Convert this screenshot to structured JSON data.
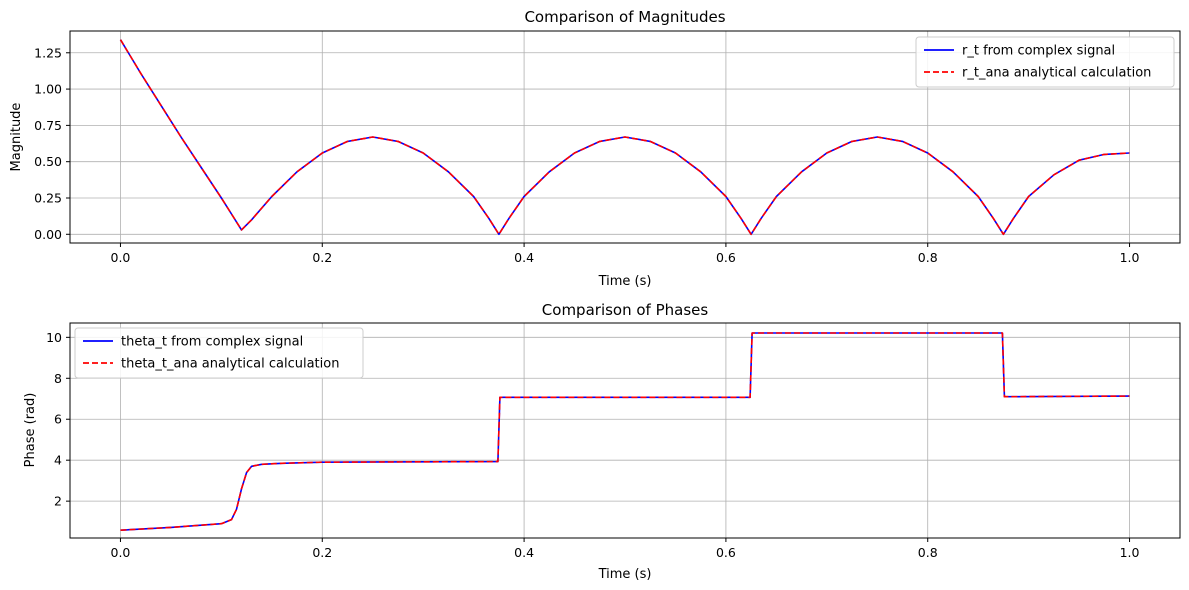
{
  "chart_data": [
    {
      "type": "line",
      "title": "Comparison of Magnitudes",
      "xlabel": "Time (s)",
      "ylabel": "Magnitude",
      "xlim": [
        -0.05,
        1.05
      ],
      "ylim": [
        -0.06,
        1.4
      ],
      "xticks": [
        0.0,
        0.2,
        0.4,
        0.6,
        0.8,
        1.0
      ],
      "xtick_labels": [
        "0.0",
        "0.2",
        "0.4",
        "0.6",
        "0.8",
        "1.0"
      ],
      "yticks": [
        0.0,
        0.25,
        0.5,
        0.75,
        1.0,
        1.25
      ],
      "ytick_labels": [
        "0.00",
        "0.25",
        "0.50",
        "0.75",
        "1.00",
        "1.25"
      ],
      "grid": true,
      "legend_position": "top-right",
      "series": [
        {
          "name": "r_t from complex signal",
          "color": "#0000ff",
          "style": "solid",
          "x": [
            0.0,
            0.02,
            0.04,
            0.06,
            0.08,
            0.1,
            0.11,
            0.12,
            0.13,
            0.15,
            0.175,
            0.2,
            0.225,
            0.25,
            0.275,
            0.3,
            0.325,
            0.35,
            0.365,
            0.375,
            0.385,
            0.4,
            0.425,
            0.45,
            0.475,
            0.5,
            0.525,
            0.55,
            0.575,
            0.6,
            0.615,
            0.625,
            0.635,
            0.65,
            0.675,
            0.7,
            0.725,
            0.75,
            0.775,
            0.8,
            0.825,
            0.85,
            0.865,
            0.875,
            0.885,
            0.9,
            0.925,
            0.95,
            0.975,
            1.0
          ],
          "y": [
            1.34,
            1.11,
            0.89,
            0.67,
            0.46,
            0.25,
            0.14,
            0.03,
            0.1,
            0.26,
            0.43,
            0.56,
            0.64,
            0.67,
            0.64,
            0.56,
            0.43,
            0.26,
            0.11,
            0.0,
            0.11,
            0.26,
            0.43,
            0.56,
            0.64,
            0.67,
            0.64,
            0.56,
            0.43,
            0.26,
            0.11,
            0.0,
            0.11,
            0.26,
            0.43,
            0.56,
            0.64,
            0.67,
            0.64,
            0.56,
            0.43,
            0.26,
            0.11,
            0.0,
            0.11,
            0.26,
            0.41,
            0.51,
            0.55,
            0.56
          ]
        },
        {
          "name": "r_t_ana analytical calculation",
          "color": "#ff0000",
          "style": "dashed",
          "x": [
            0.0,
            0.02,
            0.04,
            0.06,
            0.08,
            0.1,
            0.11,
            0.12,
            0.13,
            0.15,
            0.175,
            0.2,
            0.225,
            0.25,
            0.275,
            0.3,
            0.325,
            0.35,
            0.365,
            0.375,
            0.385,
            0.4,
            0.425,
            0.45,
            0.475,
            0.5,
            0.525,
            0.55,
            0.575,
            0.6,
            0.615,
            0.625,
            0.635,
            0.65,
            0.675,
            0.7,
            0.725,
            0.75,
            0.775,
            0.8,
            0.825,
            0.85,
            0.865,
            0.875,
            0.885,
            0.9,
            0.925,
            0.95,
            0.975,
            1.0
          ],
          "y": [
            1.34,
            1.11,
            0.89,
            0.67,
            0.46,
            0.25,
            0.14,
            0.03,
            0.1,
            0.26,
            0.43,
            0.56,
            0.64,
            0.67,
            0.64,
            0.56,
            0.43,
            0.26,
            0.11,
            0.0,
            0.11,
            0.26,
            0.43,
            0.56,
            0.64,
            0.67,
            0.64,
            0.56,
            0.43,
            0.26,
            0.11,
            0.0,
            0.11,
            0.26,
            0.43,
            0.56,
            0.64,
            0.67,
            0.64,
            0.56,
            0.43,
            0.26,
            0.11,
            0.0,
            0.11,
            0.26,
            0.41,
            0.51,
            0.55,
            0.56
          ]
        }
      ]
    },
    {
      "type": "line",
      "title": "Comparison of Phases",
      "xlabel": "Time (s)",
      "ylabel": "Phase (rad)",
      "xlim": [
        -0.05,
        1.05
      ],
      "ylim": [
        0.2,
        10.7
      ],
      "xticks": [
        0.0,
        0.2,
        0.4,
        0.6,
        0.8,
        1.0
      ],
      "xtick_labels": [
        "0.0",
        "0.2",
        "0.4",
        "0.6",
        "0.8",
        "1.0"
      ],
      "yticks": [
        2,
        4,
        6,
        8,
        10
      ],
      "ytick_labels": [
        "2",
        "4",
        "6",
        "8",
        "10"
      ],
      "grid": true,
      "legend_position": "top-left",
      "series": [
        {
          "name": "theta_t from complex signal",
          "color": "#0000ff",
          "style": "solid",
          "x": [
            0.0,
            0.05,
            0.1,
            0.11,
            0.115,
            0.12,
            0.125,
            0.13,
            0.14,
            0.16,
            0.2,
            0.3,
            0.374,
            0.376,
            0.45,
            0.55,
            0.624,
            0.626,
            0.7,
            0.8,
            0.874,
            0.876,
            0.95,
            1.0
          ],
          "y": [
            0.58,
            0.72,
            0.9,
            1.1,
            1.6,
            2.6,
            3.4,
            3.7,
            3.8,
            3.85,
            3.9,
            3.92,
            3.93,
            7.07,
            7.07,
            7.07,
            7.07,
            10.21,
            10.21,
            10.21,
            10.21,
            7.1,
            7.12,
            7.13
          ]
        },
        {
          "name": "theta_t_ana analytical calculation",
          "color": "#ff0000",
          "style": "dashed",
          "x": [
            0.0,
            0.05,
            0.1,
            0.11,
            0.115,
            0.12,
            0.125,
            0.13,
            0.14,
            0.16,
            0.2,
            0.3,
            0.374,
            0.376,
            0.45,
            0.55,
            0.624,
            0.626,
            0.7,
            0.8,
            0.874,
            0.876,
            0.95,
            1.0
          ],
          "y": [
            0.58,
            0.72,
            0.9,
            1.1,
            1.6,
            2.6,
            3.4,
            3.7,
            3.8,
            3.85,
            3.9,
            3.92,
            3.93,
            7.07,
            7.07,
            7.07,
            7.07,
            10.21,
            10.21,
            10.21,
            10.21,
            7.1,
            7.12,
            7.13
          ]
        }
      ]
    }
  ]
}
